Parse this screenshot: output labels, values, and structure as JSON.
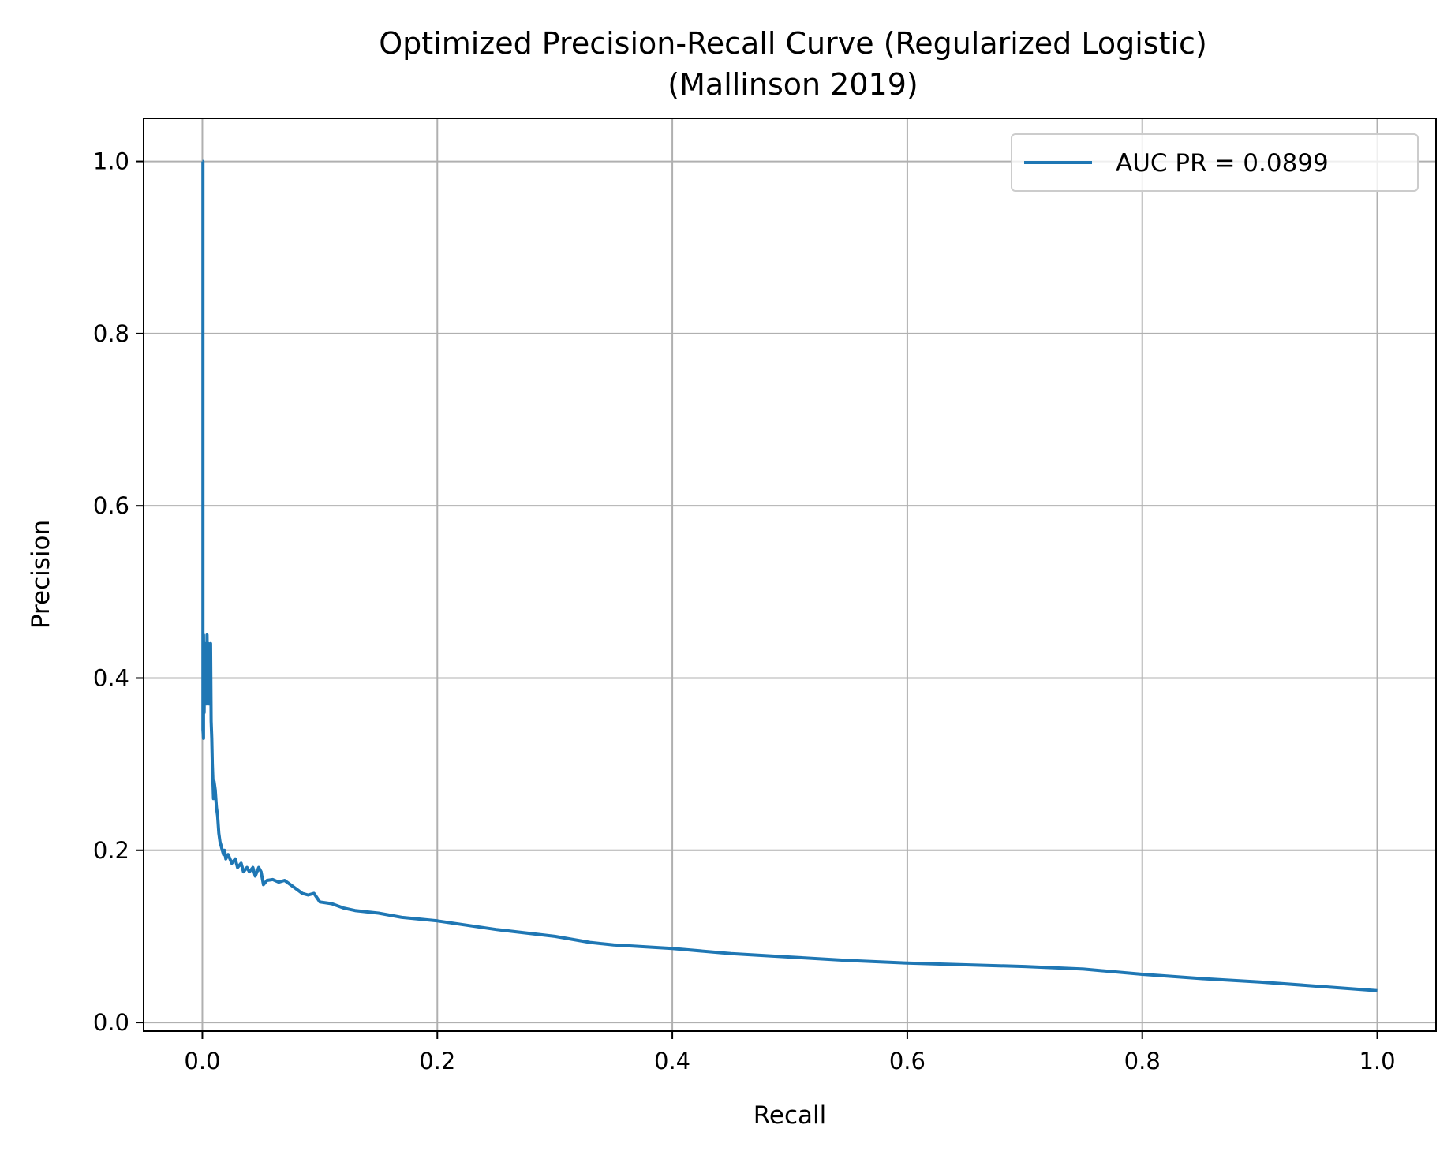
{
  "chart_data": {
    "type": "line",
    "title": "Optimized Precision-Recall Curve (Regularized Logistic)",
    "subtitle": "(Mallinson 2019)",
    "xlabel": "Recall",
    "ylabel": "Precision",
    "xlim": [
      -0.05,
      1.05
    ],
    "ylim": [
      -0.01,
      1.05
    ],
    "xticks": [
      0.0,
      0.2,
      0.4,
      0.6,
      0.8,
      1.0
    ],
    "xtick_labels": [
      "0.0",
      "0.2",
      "0.4",
      "0.6",
      "0.8",
      "1.0"
    ],
    "yticks": [
      0.0,
      0.2,
      0.4,
      0.6,
      0.8,
      1.0
    ],
    "ytick_labels": [
      "0.0",
      "0.2",
      "0.4",
      "0.6",
      "0.8",
      "1.0"
    ],
    "grid": true,
    "legend_position": "top-right",
    "series": [
      {
        "name": "AUC PR = 0.0899",
        "color": "#1f77b4",
        "x": [
          0.0,
          0.0005,
          0.0005,
          0.001,
          0.001,
          0.0015,
          0.002,
          0.0025,
          0.003,
          0.0035,
          0.004,
          0.0045,
          0.005,
          0.0055,
          0.006,
          0.0065,
          0.007,
          0.0075,
          0.008,
          0.0085,
          0.009,
          0.0095,
          0.01,
          0.011,
          0.012,
          0.013,
          0.014,
          0.015,
          0.016,
          0.017,
          0.018,
          0.019,
          0.02,
          0.022,
          0.025,
          0.028,
          0.03,
          0.033,
          0.035,
          0.038,
          0.04,
          0.043,
          0.045,
          0.048,
          0.05,
          0.052,
          0.055,
          0.06,
          0.065,
          0.07,
          0.075,
          0.08,
          0.085,
          0.09,
          0.095,
          0.1,
          0.11,
          0.12,
          0.13,
          0.15,
          0.17,
          0.2,
          0.22,
          0.25,
          0.3,
          0.33,
          0.35,
          0.4,
          0.45,
          0.5,
          0.55,
          0.6,
          0.65,
          0.7,
          0.75,
          0.8,
          0.85,
          0.9,
          0.95,
          1.0
        ],
        "y": [
          1.0,
          1.0,
          0.34,
          0.33,
          0.45,
          0.36,
          0.44,
          0.38,
          0.43,
          0.37,
          0.45,
          0.39,
          0.44,
          0.37,
          0.43,
          0.38,
          0.44,
          0.35,
          0.33,
          0.3,
          0.28,
          0.26,
          0.28,
          0.27,
          0.25,
          0.24,
          0.22,
          0.21,
          0.205,
          0.2,
          0.195,
          0.2,
          0.19,
          0.195,
          0.185,
          0.19,
          0.18,
          0.185,
          0.175,
          0.18,
          0.175,
          0.18,
          0.17,
          0.18,
          0.175,
          0.16,
          0.165,
          0.166,
          0.163,
          0.165,
          0.16,
          0.155,
          0.15,
          0.148,
          0.15,
          0.14,
          0.138,
          0.133,
          0.13,
          0.127,
          0.122,
          0.118,
          0.114,
          0.108,
          0.1,
          0.093,
          0.09,
          0.086,
          0.08,
          0.076,
          0.072,
          0.069,
          0.067,
          0.065,
          0.062,
          0.056,
          0.051,
          0.047,
          0.042,
          0.037
        ]
      }
    ]
  }
}
